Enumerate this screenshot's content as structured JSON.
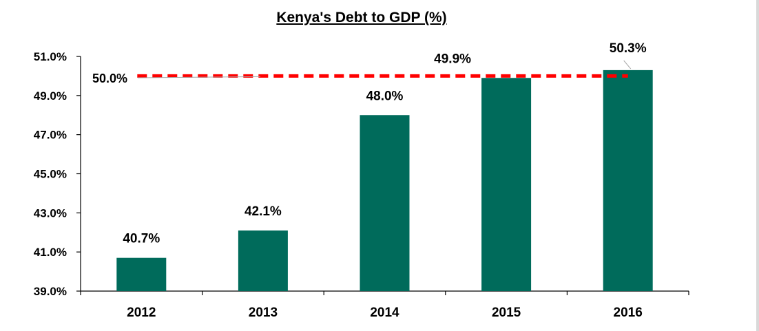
{
  "chart_data": {
    "type": "bar",
    "title": "Kenya's Debt to GDP (%)",
    "categories": [
      "2012",
      "2013",
      "2014",
      "2015",
      "2016"
    ],
    "values": [
      40.7,
      42.1,
      48.0,
      49.9,
      50.3
    ],
    "value_labels": [
      "40.7%",
      "42.1%",
      "48.0%",
      "49.9%",
      "50.3%"
    ],
    "ylim": [
      39.0,
      51.0
    ],
    "yticks": [
      39.0,
      41.0,
      43.0,
      45.0,
      47.0,
      49.0,
      51.0
    ],
    "ytick_labels": [
      "39.0%",
      "41.0%",
      "43.0%",
      "45.0%",
      "47.0%",
      "49.0%",
      "51.0%"
    ],
    "xlabel": "",
    "ylabel": "",
    "grid": false,
    "legend": "none",
    "reference_line": {
      "value": 50.0,
      "label": "50.0%",
      "style": "dashed",
      "color": "#ff0000"
    },
    "bar_color": "#006b5b",
    "axis_color": "#000000"
  }
}
